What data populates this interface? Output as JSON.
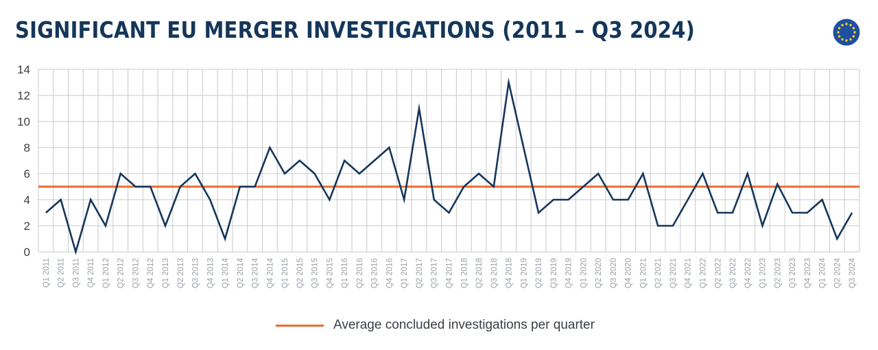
{
  "title": "SIGNIFICANT EU MERGER INVESTIGATIONS (2011 – Q3 2024)",
  "icons": {
    "flag": "eu-flag-icon"
  },
  "colors": {
    "title": "#14365a",
    "line": "#14365a",
    "average": "#ee6a2f",
    "grid": "#c9c9c9",
    "tick": "#3a3f45",
    "xtick": "#9aa0a6",
    "flag": "#1f4fa0",
    "stars": "#f6d21b"
  },
  "legend": {
    "average_label": "Average concluded investigations per quarter"
  },
  "chart_data": {
    "type": "line",
    "title": "SIGNIFICANT EU MERGER INVESTIGATIONS (2011 – Q3 2024)",
    "xlabel": "",
    "ylabel": "",
    "ylim": [
      0,
      14
    ],
    "yticks": [
      0,
      2,
      4,
      6,
      8,
      10,
      12,
      14
    ],
    "grid": true,
    "legend_position": "bottom-center",
    "categories": [
      "Q1 2011",
      "Q2 2011",
      "Q3 2011",
      "Q4 2011",
      "Q1 2012",
      "Q2 2012",
      "Q3 2012",
      "Q4 2012",
      "Q1 2013",
      "Q2 2013",
      "Q3 2013",
      "Q4 2013",
      "Q1 2014",
      "Q2 2014",
      "Q3 2014",
      "Q4 2014",
      "Q1 2015",
      "Q2 2015",
      "Q3 2015",
      "Q4 2015",
      "Q1 2016",
      "Q2 2016",
      "Q3 2016",
      "Q4 2016",
      "Q1 2017",
      "Q2 2017",
      "Q3 2017",
      "Q4 2017",
      "Q1 2018",
      "Q2 2018",
      "Q3 2018",
      "Q4 2018",
      "Q1 2019",
      "Q2 2019",
      "Q3 2019",
      "Q4 2019",
      "Q1 2020",
      "Q2 2020",
      "Q3 2020",
      "Q4 2020",
      "Q1 2021",
      "Q2 2021",
      "Q3 2021",
      "Q4 2021",
      "Q1 2022",
      "Q2 2022",
      "Q3 2022",
      "Q4 2022",
      "Q1 2023",
      "Q2 2023",
      "Q3 2023",
      "Q4 2023",
      "Q1 2024",
      "Q2 2024",
      "Q3 2024"
    ],
    "series": [
      {
        "values": [
          3,
          4,
          0,
          4,
          2,
          6,
          5,
          5,
          2,
          5,
          6,
          4,
          1,
          5,
          5,
          8,
          6,
          7,
          6,
          4,
          7,
          6,
          7,
          8,
          4,
          11,
          4,
          3,
          5,
          6,
          5,
          13,
          8,
          3,
          4,
          4,
          5,
          6,
          4,
          4,
          6,
          2,
          2,
          4,
          6,
          3,
          3,
          6,
          2,
          5.2,
          3,
          3,
          4,
          1,
          3
        ]
      },
      {
        "name": "Average concluded investigations per quarter",
        "type": "horizontal-line",
        "value": 5
      }
    ]
  }
}
